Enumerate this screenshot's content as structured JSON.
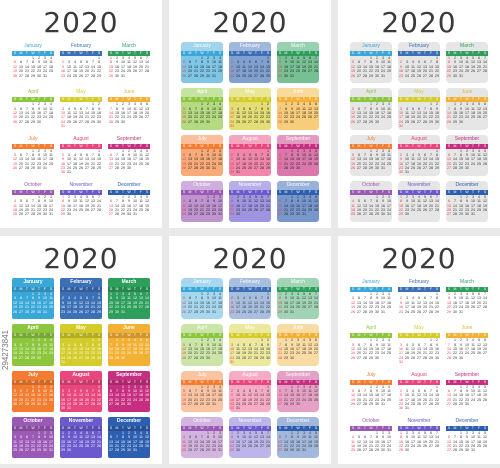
{
  "year": "2020",
  "weekday_letters": [
    "S",
    "M",
    "T",
    "W",
    "T",
    "F",
    "S"
  ],
  "months": [
    {
      "name": "January",
      "color": "#3aa7d9",
      "start": 3,
      "days": 31
    },
    {
      "name": "February",
      "color": "#3b6fb6",
      "start": 6,
      "days": 29
    },
    {
      "name": "March",
      "color": "#2e9e5b",
      "start": 0,
      "days": 31
    },
    {
      "name": "April",
      "color": "#8cc63f",
      "start": 3,
      "days": 30
    },
    {
      "name": "May",
      "color": "#d4cc2a",
      "start": 5,
      "days": 31
    },
    {
      "name": "June",
      "color": "#f2b134",
      "start": 1,
      "days": 30
    },
    {
      "name": "July",
      "color": "#f47c30",
      "start": 3,
      "days": 31
    },
    {
      "name": "August",
      "color": "#e8467c",
      "start": 6,
      "days": 31
    },
    {
      "name": "September",
      "color": "#c62f7f",
      "start": 2,
      "days": 30
    },
    {
      "name": "October",
      "color": "#9b59b6",
      "start": 4,
      "days": 31
    },
    {
      "name": "November",
      "color": "#6a5acd",
      "start": 0,
      "days": 30
    },
    {
      "name": "December",
      "color": "#2d5fb0",
      "start": 2,
      "days": 31
    }
  ],
  "panels": [
    {
      "style": "plain"
    },
    {
      "style": "boxed"
    },
    {
      "style": "gray"
    },
    {
      "style": "solid"
    },
    {
      "style": "pastel"
    },
    {
      "style": "plain"
    }
  ],
  "watermark": "294273841"
}
